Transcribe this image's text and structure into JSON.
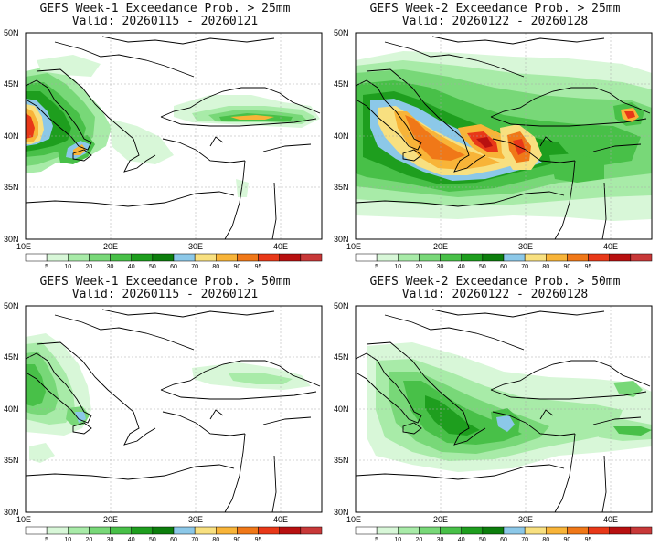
{
  "panels": [
    {
      "id": "w1-25",
      "title": "GEFS Week-1 Exceedance Prob. > 25mm",
      "valid": "Valid: 20260115 - 20260121"
    },
    {
      "id": "w2-25",
      "title": "GEFS Week-2 Exceedance Prob. > 25mm",
      "valid": "Valid: 20260122 - 20260128"
    },
    {
      "id": "w1-50",
      "title": "GEFS Week-1 Exceedance Prob. > 50mm",
      "valid": "Valid: 20260115 - 20260121"
    },
    {
      "id": "w2-50",
      "title": "GEFS Week-2 Exceedance Prob. > 50mm",
      "valid": "Valid: 20260122 - 20260128"
    }
  ],
  "axes": {
    "lat_labels": [
      "50N",
      "45N",
      "40N",
      "35N",
      "30N"
    ],
    "lon_labels": [
      "10E",
      "20E",
      "30E",
      "40E"
    ]
  },
  "colorbar": {
    "labels": [
      "5",
      "10",
      "20",
      "30",
      "40",
      "50",
      "60",
      "70",
      "80",
      "90",
      "95"
    ],
    "colors": [
      "#ffffff",
      "#d8f7d8",
      "#a8eba8",
      "#78d878",
      "#48c048",
      "#1e9e1e",
      "#0c7e0c",
      "#8cc8e8",
      "#f8e080",
      "#f8b438",
      "#f07818",
      "#e83818",
      "#b81010",
      "#c83838"
    ]
  }
}
